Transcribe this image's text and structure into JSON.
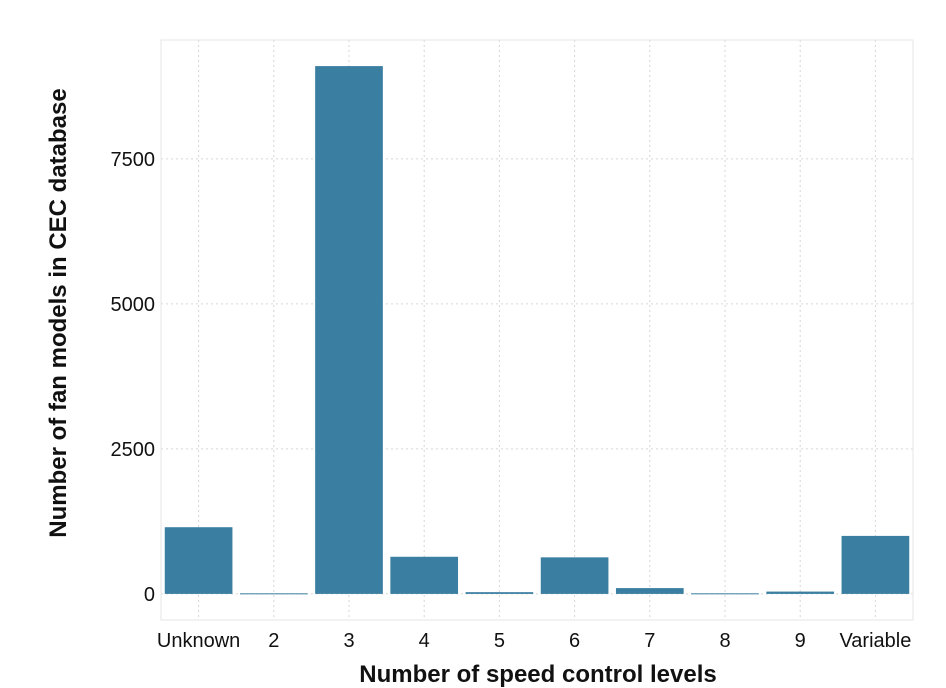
{
  "chart_data": {
    "type": "bar",
    "title": "",
    "xlabel": "Number of speed control levels",
    "ylabel": "Number of fan models in CEC database",
    "categories": [
      "Unknown",
      "2",
      "3",
      "4",
      "5",
      "6",
      "7",
      "8",
      "9",
      "Variable"
    ],
    "values": [
      1150,
      10,
      9100,
      640,
      30,
      630,
      100,
      10,
      40,
      1000
    ],
    "yticks": [
      0,
      2500,
      5000,
      7500
    ],
    "yticklabels": [
      "0",
      "2500",
      "5000",
      "7500"
    ],
    "ylim": [
      -450,
      9550
    ],
    "grid": true,
    "legend": "none",
    "bar_color": "#3a7ea1"
  }
}
